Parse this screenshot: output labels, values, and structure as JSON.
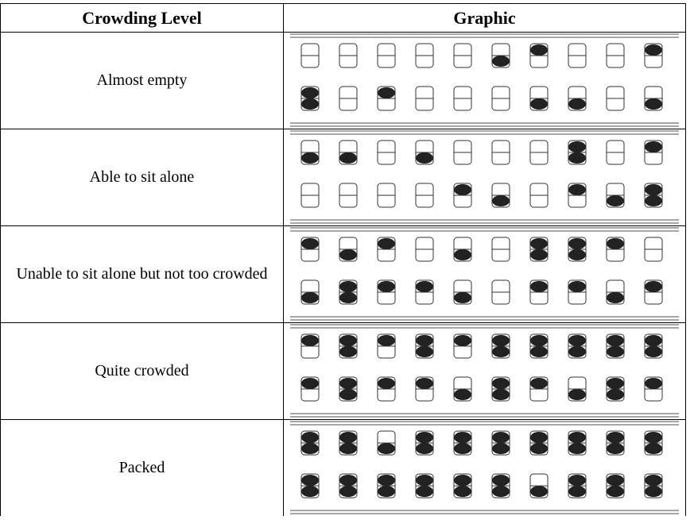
{
  "table": {
    "header": [
      "Crowding Level",
      "Graphic"
    ],
    "rows": [
      [
        "Almost empty"
      ],
      [
        "Able to sit alone"
      ],
      [
        "Unable to sit alone but not too crowded"
      ],
      [
        "Quite crowded"
      ],
      [
        "Packed"
      ]
    ]
  }
}
